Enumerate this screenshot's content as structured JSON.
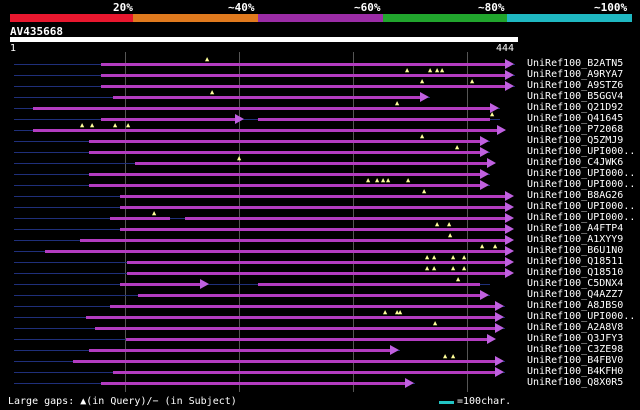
{
  "coverage_scale": {
    "labels": [
      "20%",
      "~40%",
      "~60%",
      "~80%",
      "~100%"
    ],
    "band_colors": [
      "#e8172e",
      "#e07a1e",
      "#9b2ca6",
      "#21a52d",
      "#1fb8c2"
    ]
  },
  "query": {
    "id": "AV435668",
    "start": "1",
    "end": "444"
  },
  "hits": [
    {
      "label": "UniRef100_B2ATN5",
      "gaps": 1
    },
    {
      "label": "UniRef100_A9RYA7",
      "gaps": 4
    },
    {
      "label": "UniRef100_A9STZ6",
      "gaps": 2
    },
    {
      "label": "UniRef100_B5GGV4",
      "gaps": 1
    },
    {
      "label": "UniRef100_Q21D92",
      "gaps": 1
    },
    {
      "label": "UniRef100_Q41645",
      "gaps": 1
    },
    {
      "label": "UniRef100_P72068",
      "gaps": 5
    },
    {
      "label": "UniRef100_Q5ZMJ9",
      "gaps": 1
    },
    {
      "label": "UniRef100_UPI000..",
      "gaps": 1
    },
    {
      "label": "UniRef100_C4JWK6",
      "gaps": 1
    },
    {
      "label": "UniRef100_UPI000..",
      "gaps": 0
    },
    {
      "label": "UniRef100_UPI000..",
      "gaps": 5
    },
    {
      "label": "UniRef100_B8AG26",
      "gaps": 1
    },
    {
      "label": "UniRef100_UPI000..",
      "gaps": 0
    },
    {
      "label": "UniRef100_UPI000..",
      "gaps": 1
    },
    {
      "label": "UniRef100_A4FTP4",
      "gaps": 2
    },
    {
      "label": "UniRef100_A1XYY9",
      "gaps": 1
    },
    {
      "label": "UniRef100_B6U1N0",
      "gaps": 2
    },
    {
      "label": "UniRef100_Q18511",
      "gaps": 4
    },
    {
      "label": "UniRef100_Q18510",
      "gaps": 4
    },
    {
      "label": "UniRef100_C5DNX4",
      "gaps": 1
    },
    {
      "label": "UniRef100_Q4AZZ7",
      "gaps": 0
    },
    {
      "label": "UniRef100_A8JBS0",
      "gaps": 0
    },
    {
      "label": "UniRef100_UPI000..",
      "gaps": 3
    },
    {
      "label": "UniRef100_A2A8V8",
      "gaps": 1
    },
    {
      "label": "UniRef100_Q3JFY3",
      "gaps": 0
    },
    {
      "label": "UniRef100_C3ZE98",
      "gaps": 0
    },
    {
      "label": "UniRef100_B4FBV0",
      "gaps": 2
    },
    {
      "label": "UniRef100_B4KFH0",
      "gaps": 0
    },
    {
      "label": "UniRef100_Q8X0R5",
      "gaps": 0
    }
  ],
  "legend": {
    "gaps_text": "Large gaps: ▲(in Query)/− (in Subject)",
    "scale_text": "=100char."
  }
}
